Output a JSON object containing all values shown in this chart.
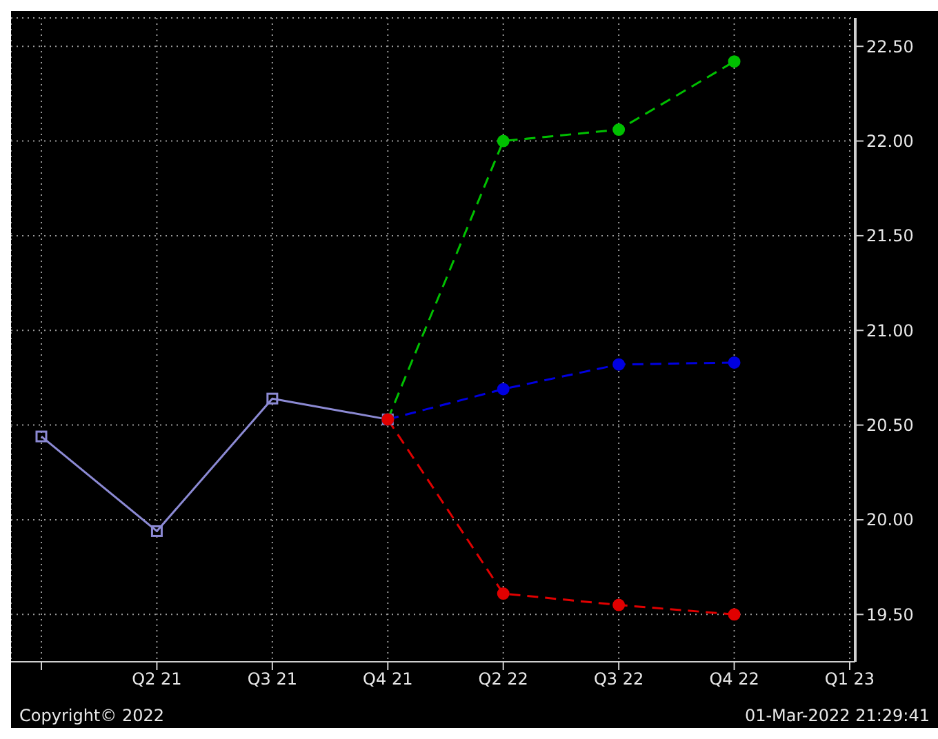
{
  "chart_data": {
    "type": "line",
    "categories": [
      null,
      "Q2 21",
      "Q3 21",
      "Q4 21",
      "Q2 22",
      "Q3 22",
      "Q4 22",
      "Q1 23"
    ],
    "series": [
      {
        "color": "#8c8ad4",
        "marker": "square",
        "line_style": "solid",
        "values": [
          20.44,
          19.94,
          20.64,
          20.53,
          null,
          null,
          null,
          null
        ]
      },
      {
        "color": "#00c000",
        "marker": "circle",
        "line_style": "dashed",
        "values": [
          null,
          null,
          null,
          20.53,
          22.0,
          22.06,
          22.42,
          null
        ]
      },
      {
        "color": "#0000e0",
        "marker": "circle",
        "line_style": "dashed",
        "values": [
          null,
          null,
          null,
          20.53,
          20.69,
          20.82,
          20.83,
          null
        ]
      },
      {
        "color": "#e00000",
        "marker": "circle",
        "line_style": "dashed",
        "values": [
          null,
          null,
          null,
          20.53,
          19.61,
          19.55,
          19.5,
          null
        ]
      }
    ],
    "ylim": [
      19.25,
      22.65
    ],
    "yticks": [
      {
        "value": 19.5,
        "label": "19.50"
      },
      {
        "value": 20.0,
        "label": "20.00"
      },
      {
        "value": 20.5,
        "label": "20.50"
      },
      {
        "value": 21.0,
        "label": "21.00"
      },
      {
        "value": 21.5,
        "label": "21.50"
      },
      {
        "value": 22.0,
        "label": "22.00"
      },
      {
        "value": 22.5,
        "label": "22.50"
      }
    ],
    "grid": true,
    "annotations": [
      "Copyright© 2022",
      "01-Mar-2022 21:29:41"
    ]
  }
}
